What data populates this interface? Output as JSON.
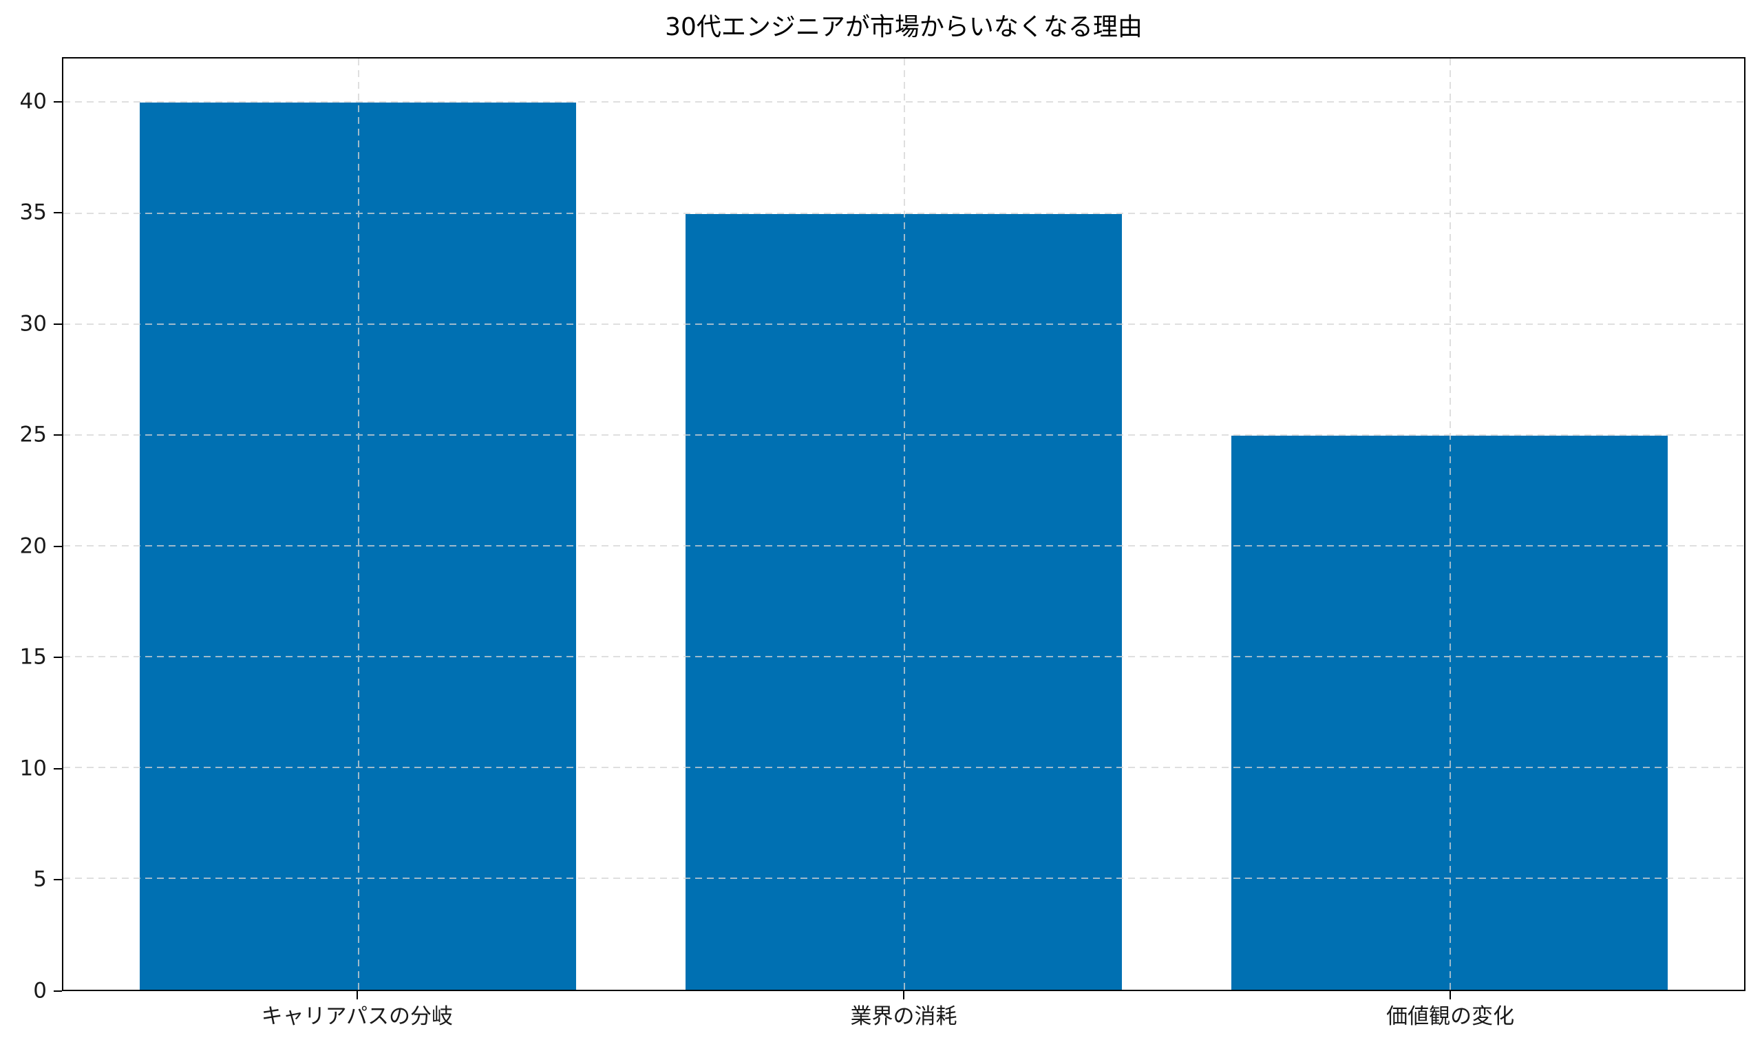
{
  "chart_data": {
    "type": "bar",
    "title": "30代エンジニアが市場からいなくなる理由",
    "categories": [
      "キャリアパスの分岐",
      "業界の消耗",
      "価値観の変化"
    ],
    "values": [
      40,
      35,
      25
    ],
    "xlabel": "",
    "ylabel": "",
    "ylim": [
      0,
      42
    ],
    "yticks": [
      0,
      5,
      10,
      15,
      20,
      25,
      30,
      35,
      40
    ],
    "bar_color": "#0070b2",
    "bar_width_fraction": 0.8,
    "grid": {
      "visible": true,
      "axis": "both",
      "style": "dashed",
      "color": "#d4d4d4",
      "drawn_over_bars": true
    },
    "legend_position": "none",
    "background_color": "#ffffff",
    "spine_color": "#000000",
    "text_color": "#1a1a1a"
  }
}
